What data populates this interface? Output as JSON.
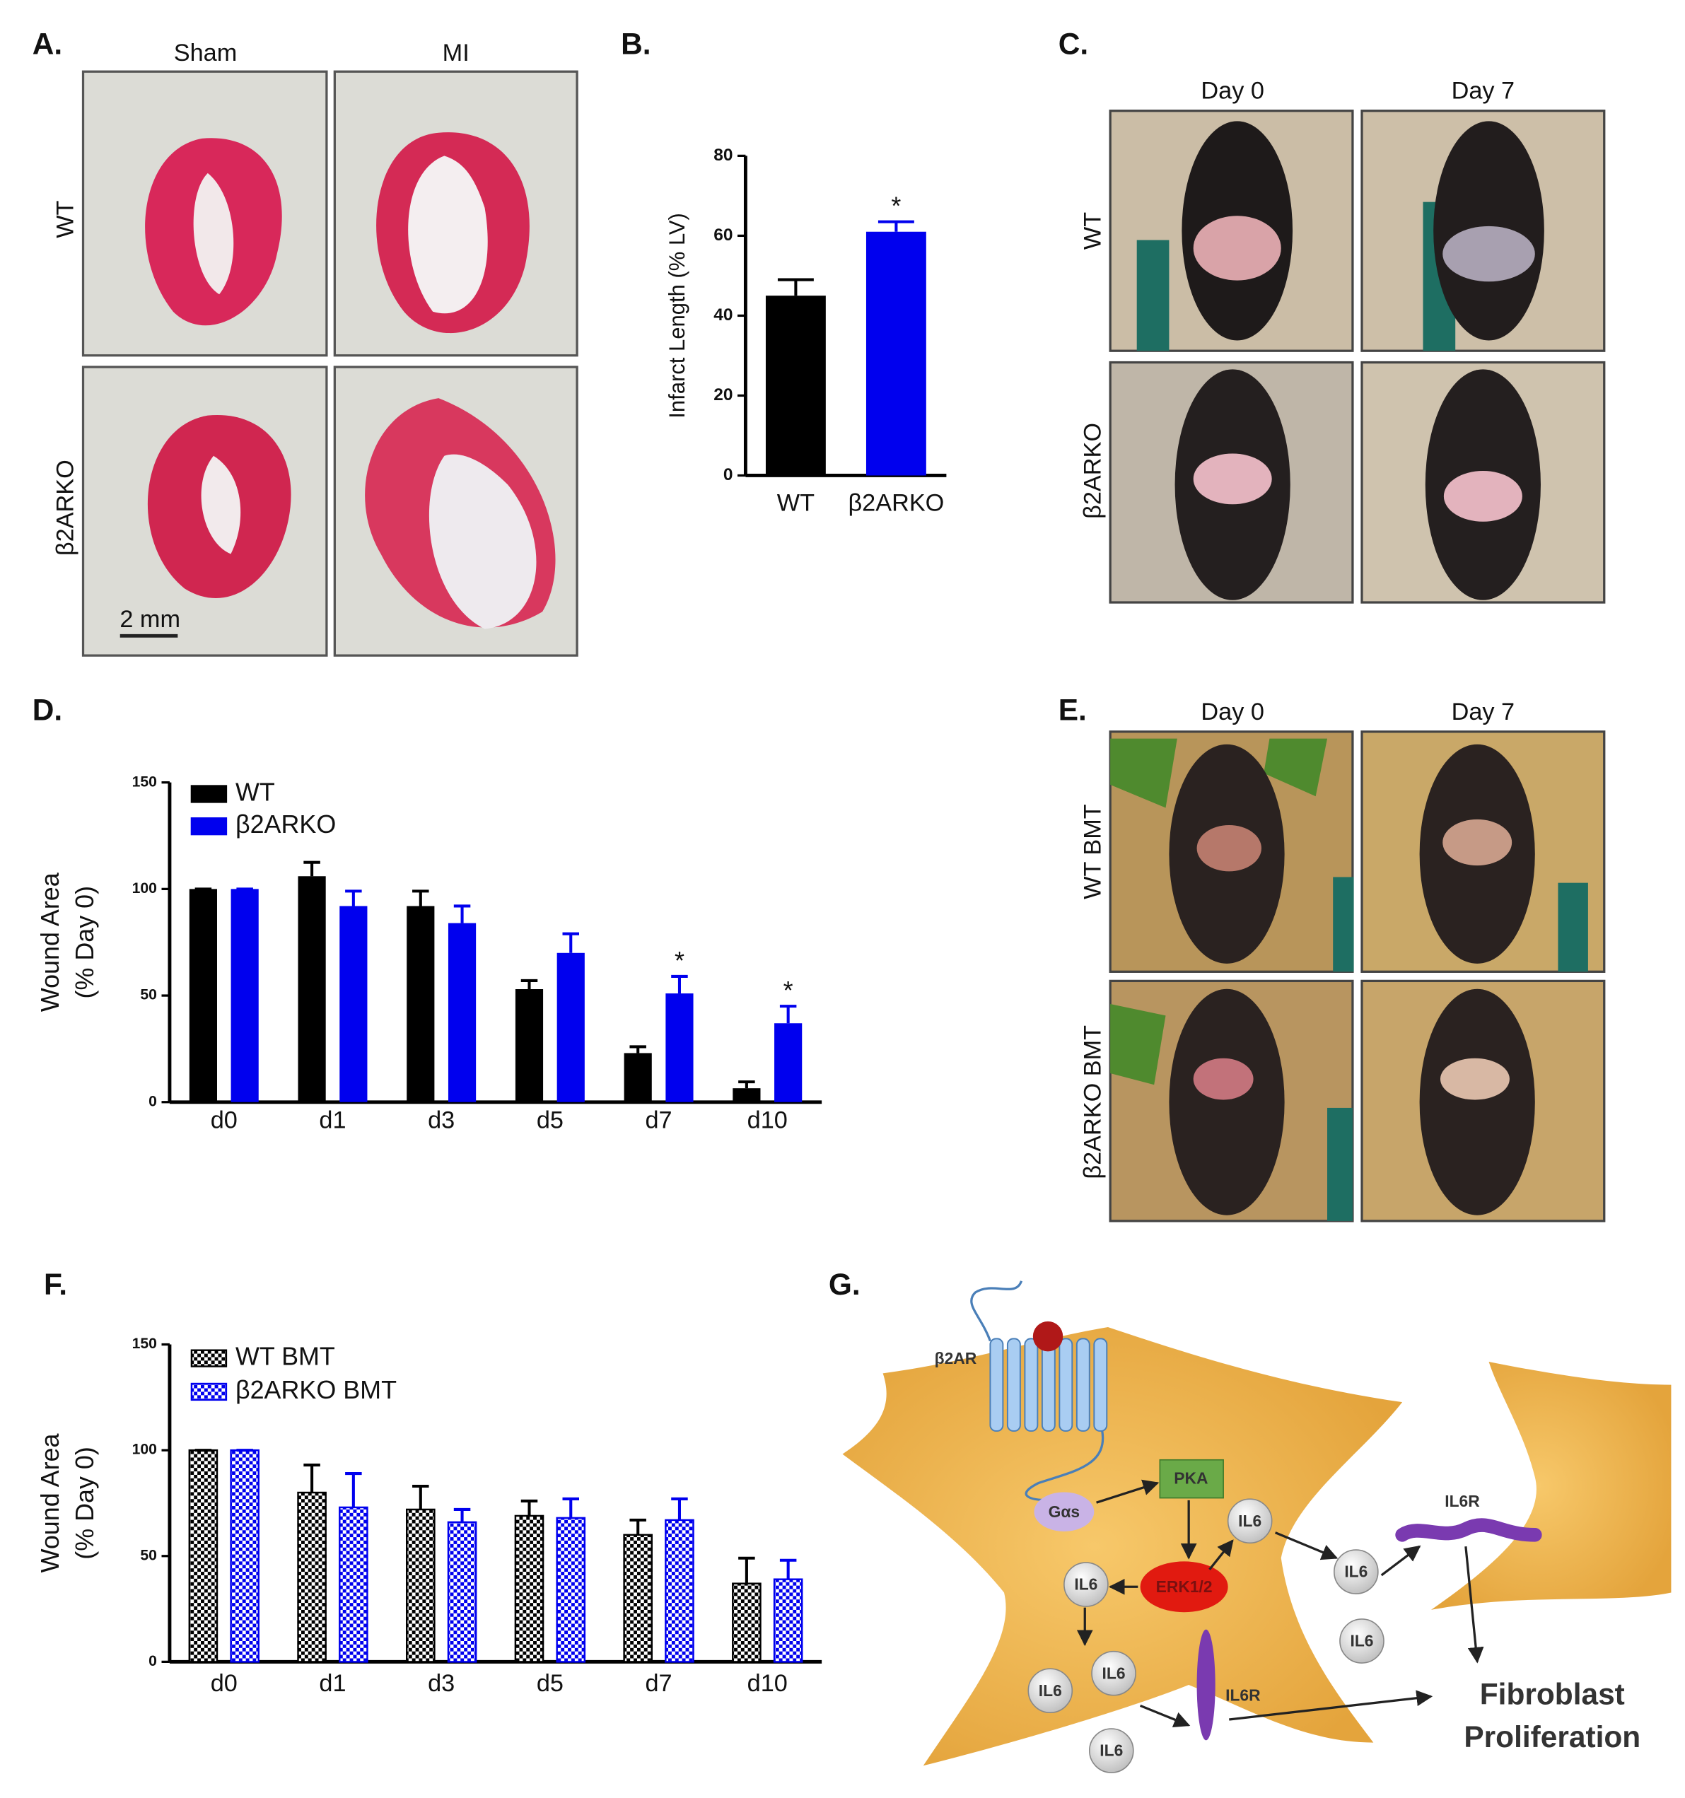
{
  "figure": {
    "panels": {
      "A": "A.",
      "B": "B.",
      "C": "C.",
      "D": "D.",
      "E": "E.",
      "F": "F.",
      "G": "G."
    },
    "histology": {
      "columns": [
        "Sham",
        "MI"
      ],
      "rows": [
        "WT",
        "β2ARKO"
      ],
      "scale_bar": "2 mm"
    },
    "wound_photos": {
      "columns": [
        "Day 0",
        "Day 7"
      ],
      "rows": [
        "WT",
        "β2ARKO"
      ]
    },
    "bmt_photos": {
      "columns": [
        "Day 0",
        "Day 7"
      ],
      "rows": [
        "WT BMT",
        "β2ARKO BMT"
      ]
    }
  },
  "chart_data": [
    {
      "type": "bar",
      "ylabel": "Infarct Length (% LV)",
      "categories": [
        "WT",
        "β2ARKO"
      ],
      "values": [
        45,
        61
      ],
      "errors": [
        4,
        2.5
      ],
      "colors": [
        "#000000",
        "#0000ee"
      ],
      "significance": [
        null,
        "*"
      ],
      "ylim": [
        0,
        80
      ],
      "yticks": [
        0,
        20,
        40,
        60,
        80
      ]
    },
    {
      "type": "bar",
      "ylabel": [
        "Wound Area",
        "(% Day 0)"
      ],
      "categories": [
        "d0",
        "d1",
        "d3",
        "d5",
        "d7",
        "d10"
      ],
      "series": [
        {
          "name": "WT",
          "color": "#000000",
          "values": [
            100,
            106,
            92,
            53,
            23,
            6.5
          ],
          "errors": [
            0,
            6.5,
            7,
            4,
            3,
            3
          ],
          "significance": [
            null,
            null,
            null,
            null,
            null,
            null
          ]
        },
        {
          "name": "β2ARKO",
          "color": "#0000ee",
          "values": [
            100,
            92,
            84,
            70,
            51,
            37
          ],
          "errors": [
            0,
            7,
            8,
            9,
            8,
            8
          ],
          "significance": [
            null,
            null,
            null,
            null,
            "*",
            "*"
          ]
        }
      ],
      "ylim": [
        0,
        150
      ],
      "yticks": [
        0,
        50,
        100,
        150
      ]
    },
    {
      "type": "bar",
      "ylabel": [
        "Wound Area",
        "(% Day 0)"
      ],
      "pattern": "checkerboard",
      "categories": [
        "d0",
        "d1",
        "d3",
        "d5",
        "d7",
        "d10"
      ],
      "series": [
        {
          "name": "WT BMT",
          "color": "#000000",
          "values": [
            100,
            80,
            72,
            69,
            60,
            37
          ],
          "errors": [
            0,
            13,
            11,
            7,
            7,
            12
          ]
        },
        {
          "name": "β2ARKO BMT",
          "color": "#0000ee",
          "values": [
            100,
            73,
            66,
            68,
            67,
            39
          ],
          "errors": [
            0,
            16,
            6,
            9,
            10,
            9
          ]
        }
      ],
      "ylim": [
        0,
        150
      ],
      "yticks": [
        0,
        50,
        100,
        150
      ]
    }
  ],
  "diagram": {
    "receptor": "β2AR",
    "g_protein": "Gαs",
    "kinase": "PKA",
    "erk": "ERK1/2",
    "il6": [
      "IL6",
      "IL6",
      "IL6",
      "IL6",
      "IL6",
      "IL6",
      "IL6"
    ],
    "il6r": [
      "IL6R",
      "IL6R"
    ],
    "outcome": [
      "Fibroblast",
      "Proliferation"
    ]
  }
}
